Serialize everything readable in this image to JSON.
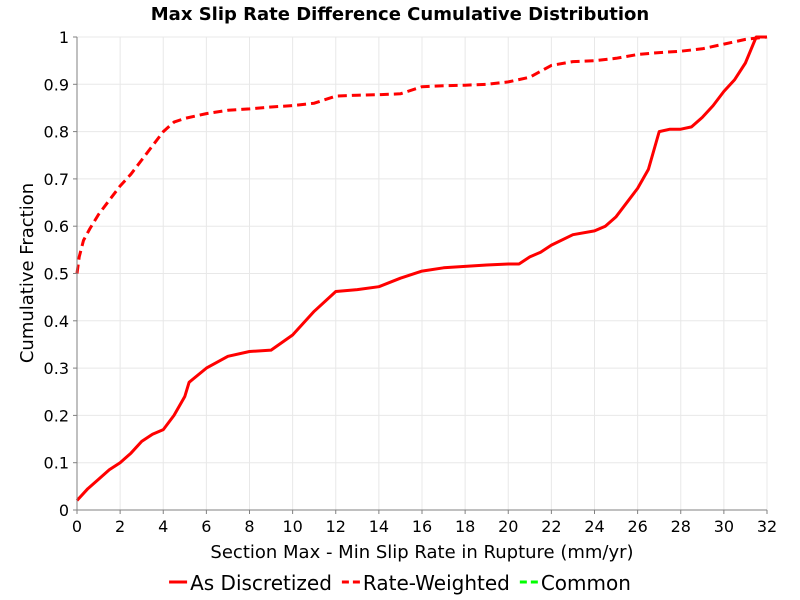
{
  "chart_data": {
    "type": "line",
    "title": "Max Slip Rate Difference Cumulative Distribution",
    "xlabel": "Section Max - Min Slip Rate in Rupture (mm/yr)",
    "ylabel": "Cumulative Fraction",
    "xlim": [
      0,
      32
    ],
    "ylim": [
      0,
      1
    ],
    "x_ticks": [
      "0",
      "2",
      "4",
      "6",
      "8",
      "10",
      "12",
      "14",
      "16",
      "18",
      "20",
      "22",
      "24",
      "26",
      "28",
      "30",
      "32"
    ],
    "y_ticks": [
      "0",
      "0.1",
      "0.2",
      "0.3",
      "0.4",
      "0.5",
      "0.6",
      "0.7",
      "0.8",
      "0.9",
      "1"
    ],
    "grid": true,
    "legend_position": "bottom",
    "series": [
      {
        "name": "As Discretized",
        "color": "#ff0000",
        "style": "solid",
        "points": [
          [
            0,
            0.02
          ],
          [
            0.5,
            0.045
          ],
          [
            1,
            0.065
          ],
          [
            1.5,
            0.085
          ],
          [
            2,
            0.1
          ],
          [
            2.5,
            0.12
          ],
          [
            3,
            0.145
          ],
          [
            3.5,
            0.16
          ],
          [
            4,
            0.17
          ],
          [
            4.5,
            0.2
          ],
          [
            5,
            0.24
          ],
          [
            5.2,
            0.27
          ],
          [
            6,
            0.3
          ],
          [
            7,
            0.325
          ],
          [
            8,
            0.335
          ],
          [
            9,
            0.338
          ],
          [
            10,
            0.37
          ],
          [
            11,
            0.42
          ],
          [
            12,
            0.462
          ],
          [
            13,
            0.466
          ],
          [
            14,
            0.472
          ],
          [
            15,
            0.49
          ],
          [
            16,
            0.505
          ],
          [
            17,
            0.512
          ],
          [
            18,
            0.515
          ],
          [
            19,
            0.518
          ],
          [
            20,
            0.52
          ],
          [
            20.5,
            0.52
          ],
          [
            21,
            0.535
          ],
          [
            21.5,
            0.545
          ],
          [
            22,
            0.56
          ],
          [
            23,
            0.582
          ],
          [
            24,
            0.59
          ],
          [
            24.5,
            0.6
          ],
          [
            25,
            0.62
          ],
          [
            26,
            0.68
          ],
          [
            26.5,
            0.72
          ],
          [
            27,
            0.8
          ],
          [
            27.5,
            0.805
          ],
          [
            28,
            0.805
          ],
          [
            28.5,
            0.81
          ],
          [
            29,
            0.83
          ],
          [
            29.5,
            0.855
          ],
          [
            30,
            0.885
          ],
          [
            30.5,
            0.91
          ],
          [
            31,
            0.945
          ],
          [
            31.5,
            1.0
          ],
          [
            32,
            1.0
          ]
        ]
      },
      {
        "name": "Rate-Weighted",
        "color": "#ff0000",
        "style": "dashed",
        "points": [
          [
            0,
            0.5
          ],
          [
            0.1,
            0.535
          ],
          [
            0.3,
            0.57
          ],
          [
            0.6,
            0.595
          ],
          [
            1,
            0.625
          ],
          [
            1.5,
            0.655
          ],
          [
            2,
            0.685
          ],
          [
            2.5,
            0.71
          ],
          [
            3,
            0.74
          ],
          [
            3.5,
            0.77
          ],
          [
            4,
            0.8
          ],
          [
            4.5,
            0.82
          ],
          [
            5,
            0.828
          ],
          [
            6,
            0.838
          ],
          [
            7,
            0.845
          ],
          [
            8,
            0.848
          ],
          [
            9,
            0.852
          ],
          [
            10,
            0.855
          ],
          [
            11,
            0.86
          ],
          [
            12,
            0.875
          ],
          [
            13,
            0.877
          ],
          [
            14,
            0.878
          ],
          [
            15,
            0.88
          ],
          [
            16,
            0.895
          ],
          [
            17,
            0.897
          ],
          [
            18,
            0.898
          ],
          [
            19,
            0.9
          ],
          [
            20,
            0.905
          ],
          [
            21,
            0.915
          ],
          [
            22,
            0.94
          ],
          [
            23,
            0.948
          ],
          [
            24,
            0.95
          ],
          [
            25,
            0.955
          ],
          [
            26,
            0.963
          ],
          [
            27,
            0.967
          ],
          [
            28,
            0.97
          ],
          [
            29,
            0.975
          ],
          [
            30,
            0.985
          ],
          [
            31,
            0.995
          ],
          [
            32,
            1.0
          ]
        ]
      },
      {
        "name": "Common",
        "color": "#00ff00",
        "style": "dashed",
        "points": []
      }
    ]
  }
}
